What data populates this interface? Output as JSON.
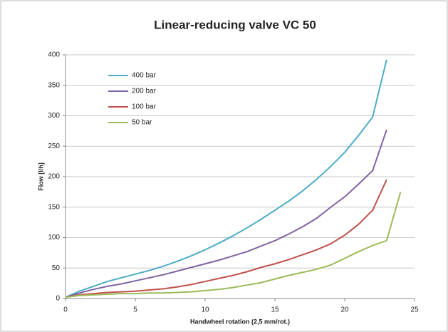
{
  "chart_data": {
    "type": "line",
    "title": "Linear-reducing valve VC 50",
    "x_label": "Handwheel rotation (2,5 mm/rot.)",
    "y_label": "Flow [l/h]",
    "x": [
      0,
      1,
      2,
      3,
      4,
      5,
      6,
      7,
      8,
      9,
      10,
      11,
      12,
      13,
      14,
      15,
      16,
      17,
      18,
      19,
      20,
      21,
      22,
      23,
      24
    ],
    "series": [
      {
        "name": "400 bar",
        "color": "#4bacc6",
        "values": [
          2,
          12,
          20,
          28,
          34,
          40,
          46,
          53,
          61,
          70,
          80,
          91,
          103,
          116,
          130,
          145,
          160,
          177,
          196,
          217,
          240,
          268,
          298,
          392,
          null
        ]
      },
      {
        "name": "200 bar",
        "color": "#8064a2",
        "values": [
          2,
          9,
          15,
          20,
          24,
          29,
          34,
          39,
          45,
          51,
          57,
          63,
          70,
          77,
          86,
          95,
          106,
          118,
          132,
          150,
          167,
          188,
          210,
          277,
          null
        ]
      },
      {
        "name": "100 bar",
        "color": "#c0504d",
        "values": [
          2,
          6,
          8,
          10,
          11,
          12,
          14,
          16,
          19,
          23,
          28,
          33,
          38,
          44,
          51,
          57,
          64,
          72,
          80,
          90,
          104,
          122,
          145,
          195,
          null
        ]
      },
      {
        "name": "50 bar",
        "color": "#9bbb59",
        "values": [
          2,
          5,
          6,
          7,
          8,
          8,
          9,
          9,
          10,
          11,
          13,
          15,
          18,
          22,
          26,
          32,
          38,
          43,
          48,
          55,
          66,
          77,
          87,
          95,
          175
        ]
      }
    ],
    "xlim": [
      0,
      25
    ],
    "xticks": [
      0,
      5,
      10,
      15,
      20,
      25
    ],
    "ylim": [
      0,
      400
    ],
    "yticks": [
      0,
      50,
      100,
      150,
      200,
      250,
      300,
      350,
      400
    ],
    "grid": true,
    "legend": "upper-left"
  }
}
